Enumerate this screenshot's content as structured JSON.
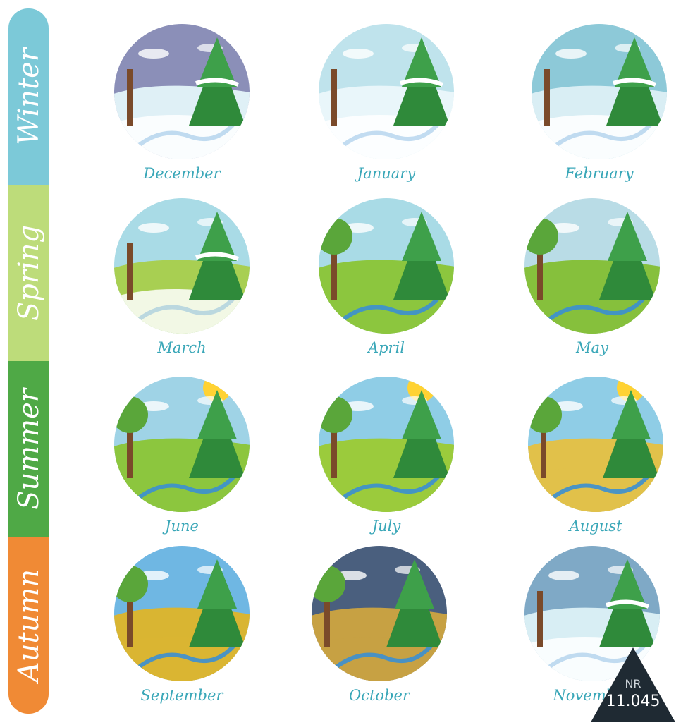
{
  "seasons": [
    {
      "label": "Winter",
      "color": "#7cc9d8"
    },
    {
      "label": "Spring",
      "color": "#bddc7a"
    },
    {
      "label": "Summer",
      "color": "#4fa946"
    },
    {
      "label": "Autumn",
      "color": "#f08a35"
    }
  ],
  "months": [
    {
      "label": "December",
      "sky": "#8b8fb8",
      "ground": "#dff0f6",
      "tree": "#2f8a3a",
      "sun": false,
      "snow": true
    },
    {
      "label": "January",
      "sky": "#bfe3ec",
      "ground": "#e9f6fa",
      "tree": "#2f8a3a",
      "sun": false,
      "snow": true
    },
    {
      "label": "February",
      "sky": "#8dc9d8",
      "ground": "#d9eef4",
      "tree": "#2f8a3a",
      "sun": false,
      "snow": true
    },
    {
      "label": "March",
      "sky": "#a9dbe6",
      "ground": "#a8cf52",
      "tree": "#2f8a3a",
      "sun": false,
      "snow": true
    },
    {
      "label": "April",
      "sky": "#a9dbe6",
      "ground": "#8cc63e",
      "tree": "#2f8a3a",
      "sun": false,
      "snow": false
    },
    {
      "label": "May",
      "sky": "#b9dce6",
      "ground": "#86c03c",
      "tree": "#2f8a3a",
      "sun": false,
      "snow": false
    },
    {
      "label": "June",
      "sky": "#9fd3e6",
      "ground": "#8cc63e",
      "tree": "#2f8a3a",
      "sun": true,
      "snow": false
    },
    {
      "label": "July",
      "sky": "#8fcde6",
      "ground": "#9bcb3c",
      "tree": "#2f8a3a",
      "sun": true,
      "snow": false
    },
    {
      "label": "August",
      "sky": "#8fcde6",
      "ground": "#e1c14a",
      "tree": "#2f8a3a",
      "sun": true,
      "snow": false
    },
    {
      "label": "September",
      "sky": "#6fb7e3",
      "ground": "#d9b532",
      "tree": "#2f8a3a",
      "sun": false,
      "snow": false
    },
    {
      "label": "October",
      "sky": "#4a5f7e",
      "ground": "#c7a143",
      "tree": "#2f8a3a",
      "sun": false,
      "snow": false
    },
    {
      "label": "November",
      "sky": "#7fa9c6",
      "ground": "#d8eef4",
      "tree": "#2f8a3a",
      "sun": false,
      "snow": true
    }
  ],
  "badge": {
    "nr": "NR",
    "number": "11.045"
  }
}
